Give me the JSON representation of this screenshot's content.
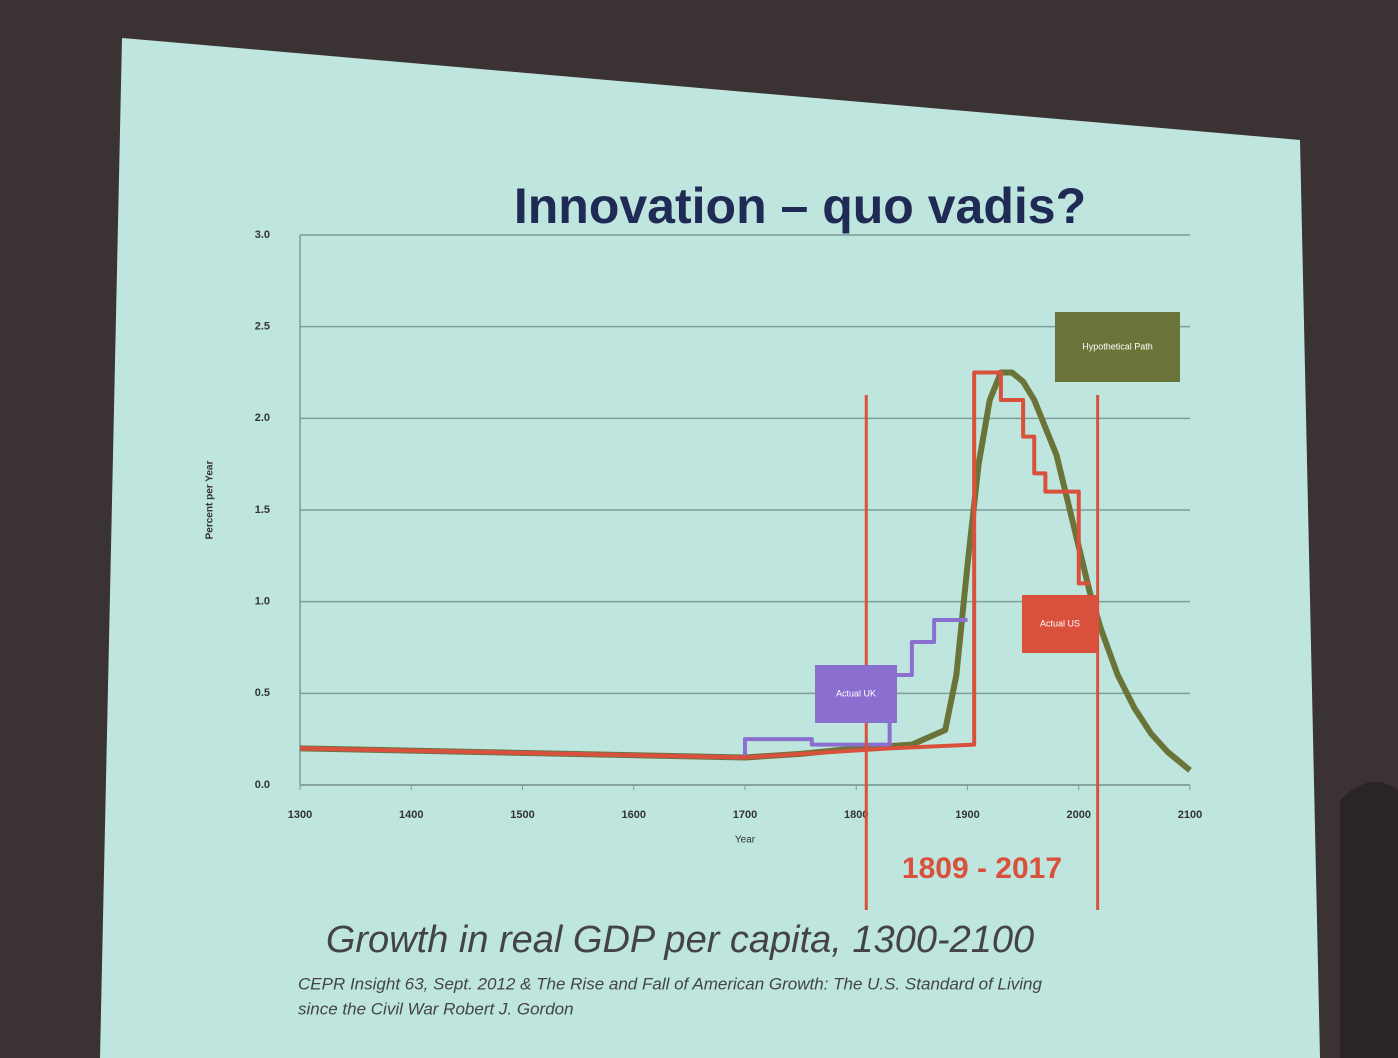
{
  "chart_data": {
    "type": "line",
    "title": "Innovation – quo vadis?",
    "x_label": "Year",
    "y_label": "Percent per Year",
    "xlim": [
      1300,
      2100
    ],
    "xticks": [
      1300,
      1400,
      1500,
      1600,
      1700,
      1800,
      1900,
      2000,
      2100
    ],
    "ylim": [
      0,
      3
    ],
    "yticks": [
      {
        "value": 0,
        "label": "0.0"
      },
      {
        "value": 0.5,
        "label": "0.5"
      },
      {
        "value": 1,
        "label": "1.0"
      },
      {
        "value": 1.5,
        "label": "1.5"
      },
      {
        "value": 2,
        "label": "2.0"
      },
      {
        "value": 2.5,
        "label": "2.5"
      },
      {
        "value": 3,
        "label": "3.0"
      }
    ],
    "grid": true,
    "series": [
      {
        "name": "Hypothetical Path",
        "color": "#6b7438",
        "x": [
          1300,
          1700,
          1750,
          1800,
          1850,
          1880,
          1890,
          1900,
          1910,
          1920,
          1930,
          1940,
          1950,
          1960,
          1970,
          1980,
          1990,
          2000,
          2010,
          2020,
          2035,
          2050,
          2065,
          2080,
          2100
        ],
        "values": [
          0.2,
          0.15,
          0.17,
          0.2,
          0.22,
          0.3,
          0.6,
          1.2,
          1.75,
          2.1,
          2.25,
          2.25,
          2.2,
          2.1,
          1.95,
          1.8,
          1.55,
          1.3,
          1.05,
          0.85,
          0.6,
          0.42,
          0.28,
          0.18,
          0.08
        ]
      },
      {
        "name": "Actual UK",
        "color": "#8a6fcf",
        "x": [
          1300,
          1700,
          1700,
          1760,
          1760,
          1830,
          1830,
          1850,
          1850,
          1870,
          1870,
          1900
        ],
        "values": [
          0.2,
          0.15,
          0.25,
          0.25,
          0.22,
          0.22,
          0.6,
          0.6,
          0.78,
          0.78,
          0.9,
          0.9
        ]
      },
      {
        "name": "Actual US",
        "color": "#d9503c",
        "x": [
          1300,
          1700,
          1830,
          1906,
          1906,
          1930,
          1930,
          1950,
          1950,
          1960,
          1960,
          1970,
          1970,
          2000,
          2000,
          2010
        ],
        "values": [
          0.2,
          0.15,
          0.2,
          0.22,
          2.25,
          2.25,
          2.1,
          2.1,
          1.9,
          1.9,
          1.7,
          1.7,
          1.6,
          1.6,
          1.1,
          1.1
        ]
      }
    ],
    "highlight_range": [
      1809,
      2017
    ],
    "highlight_label": "1809 - 2017",
    "caption": "Growth in real GDP per capita, 1300-2100",
    "source_lines": [
      "CEPR Insight 63, Sept. 2012  & The Rise and Fall of American Growth: The U.S. Standard of Living",
      "since the Civil War  Robert J. Gordon"
    ]
  }
}
